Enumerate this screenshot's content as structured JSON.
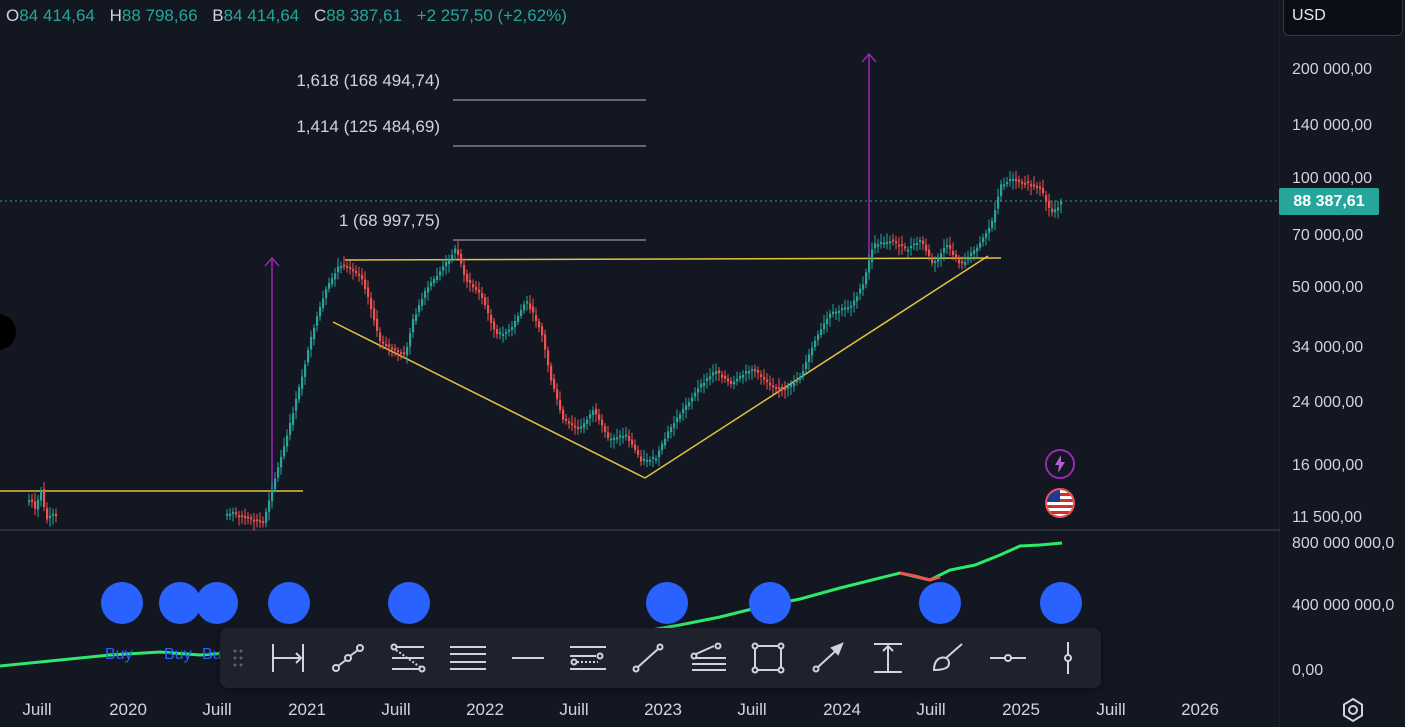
{
  "ohlc": {
    "o_key": "O",
    "o_val": "84 414,64",
    "h_key": "H",
    "h_val": "88 798,66",
    "b_key": "B",
    "b_val": "84 414,64",
    "c_key": "C",
    "c_val": "88 387,61",
    "change": "+2 257,50 (+2,62%)"
  },
  "currency": "USD",
  "price_axis": [
    "200 000,00",
    "140 000,00",
    "100 000,00",
    "70 000,00",
    "50 000,00",
    "34 000,00",
    "24 000,00",
    "16 000,00",
    "11 500,00"
  ],
  "last_price": "88 387,61",
  "volume_axis": [
    "800 000 000,0",
    "400 000 000,0",
    "0,00"
  ],
  "time_axis": [
    "Juill",
    "2020",
    "Juill",
    "2021",
    "Juill",
    "2022",
    "Juill",
    "2023",
    "Juill",
    "2024",
    "Juill",
    "2025",
    "Juill",
    "2026"
  ],
  "fib_levels": [
    "1,618 (168 494,74)",
    "1,414 (125 484,69)",
    "1 (68 997,75)"
  ],
  "signals": [
    "Buy",
    "Buy",
    "Bu"
  ],
  "toolbar": {
    "tools": [
      "date-price-range-icon",
      "trend-line-icon",
      "fib-retracement-icon",
      "parallel-lines-icon",
      "horizontal-ray-icon",
      "fib-extension-icon",
      "line-icon",
      "pitchfork-icon",
      "rectangle-icon",
      "arrow-icon",
      "price-range-icon",
      "brush-icon",
      "horizontal-line-icon",
      "vertical-line-icon"
    ]
  },
  "colors": {
    "bg": "#131722",
    "up": "#26a69a",
    "down": "#ef5350",
    "accent": "#2962ff",
    "trend": "#e0c341",
    "projection": "#9c27b0"
  }
}
